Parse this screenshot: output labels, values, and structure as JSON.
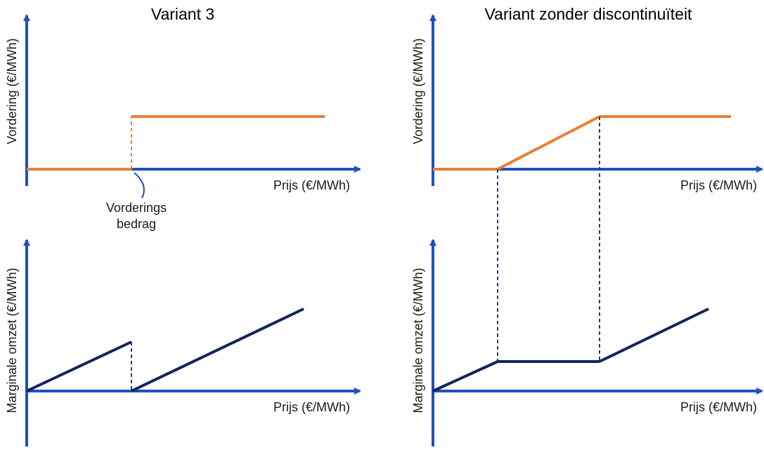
{
  "colors": {
    "axis": "#1f4fbf",
    "claim_line": "#ed7d31",
    "revenue_line": "#14235a",
    "guide": "#1f3a8a",
    "text": "#000000"
  },
  "left": {
    "title": "Variant 3",
    "top_chart": {
      "ylabel": "Vordering (€/MWh)",
      "xlabel": "Prijs (€/MWh)"
    },
    "annotation": {
      "line1": "Vorderings",
      "line2": "bedrag"
    },
    "bottom_chart": {
      "ylabel": "Marginale omzet (€/MWh)",
      "xlabel": "Prijs (€/MWh)"
    }
  },
  "right": {
    "title": "Variant zonder discontinuïteit",
    "top_chart": {
      "ylabel": "Vordering (€/MWh)",
      "xlabel": "Prijs (€/MWh)"
    },
    "bottom_chart": {
      "ylabel": "Marginale omzet (€/MWh)",
      "xlabel": "Prijs (€/MWh)"
    }
  }
}
